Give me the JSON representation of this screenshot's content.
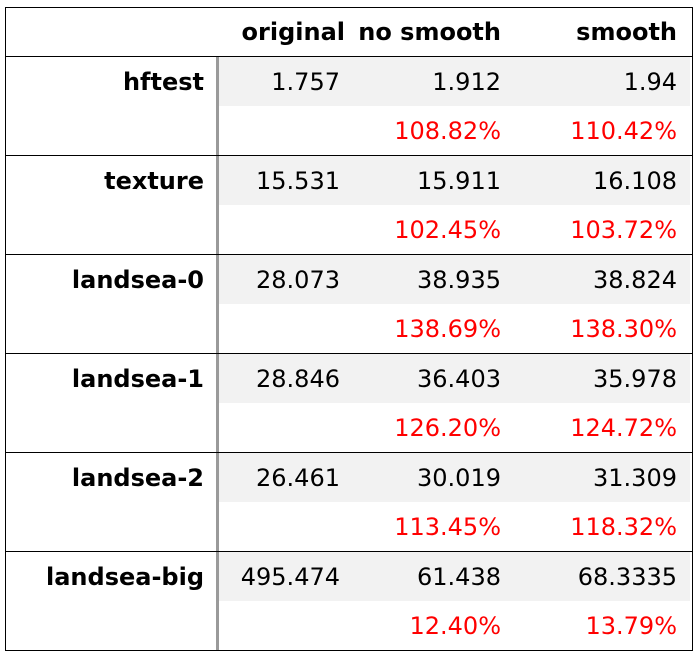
{
  "headers": [
    "",
    "original",
    "no smooth",
    "smooth"
  ],
  "colors": {
    "percent_text": "#ff0000",
    "shaded_row": "#f2f2f2",
    "divider": "#9a9a9a"
  },
  "rows": [
    {
      "name": "hftest",
      "original": "1.757",
      "no_smooth": "1.912",
      "smooth": "1.94",
      "no_smooth_pct": "108.82%",
      "smooth_pct": "110.42%"
    },
    {
      "name": "texture",
      "original": "15.531",
      "no_smooth": "15.911",
      "smooth": "16.108",
      "no_smooth_pct": "102.45%",
      "smooth_pct": "103.72%"
    },
    {
      "name": "landsea-0",
      "original": "28.073",
      "no_smooth": "38.935",
      "smooth": "38.824",
      "no_smooth_pct": "138.69%",
      "smooth_pct": "138.30%"
    },
    {
      "name": "landsea-1",
      "original": "28.846",
      "no_smooth": "36.403",
      "smooth": "35.978",
      "no_smooth_pct": "126.20%",
      "smooth_pct": "124.72%"
    },
    {
      "name": "landsea-2",
      "original": "26.461",
      "no_smooth": "30.019",
      "smooth": "31.309",
      "no_smooth_pct": "113.45%",
      "smooth_pct": "118.32%"
    },
    {
      "name": "landsea-big",
      "original": "495.474",
      "no_smooth": "61.438",
      "smooth": "68.3335",
      "no_smooth_pct": "12.40%",
      "smooth_pct": "13.79%"
    }
  ]
}
